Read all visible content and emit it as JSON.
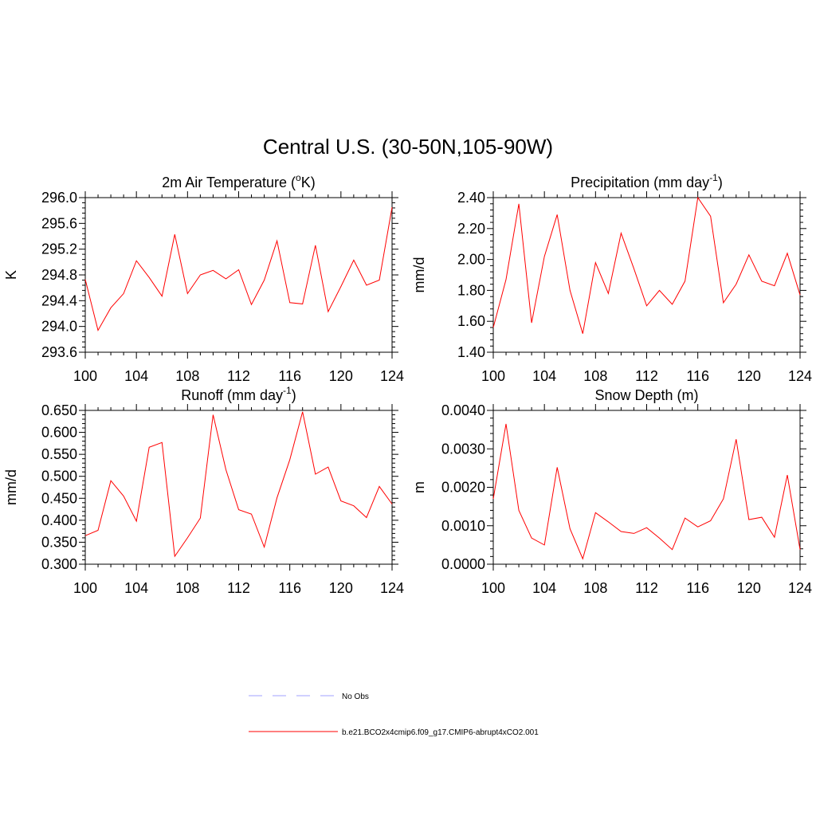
{
  "figure": {
    "title": "Central U.S. (30-50N,105-90W)"
  },
  "legend": {
    "items": [
      {
        "label": "No Obs",
        "color": "#a0a0ff",
        "dashed": true
      },
      {
        "label": "b.e21.BCO2x4cmip6.f09_g17.CMIP6-abrupt4xCO2.001",
        "color": "#ff0000",
        "dashed": false
      }
    ]
  },
  "chart_data": [
    {
      "type": "line",
      "title": "2m Air Temperature (",
      "title_sup": "o",
      "title_after": "K)",
      "ylabel": "K",
      "xlim": [
        100,
        124
      ],
      "ylim": [
        293.6,
        296.0
      ],
      "xticks": [
        "100",
        "104",
        "108",
        "112",
        "116",
        "120",
        "124"
      ],
      "yticks": [
        "293.6",
        "294.0",
        "294.4",
        "294.8",
        "295.2",
        "295.6",
        "296.0"
      ],
      "x": [
        100,
        101,
        102,
        103,
        104,
        105,
        106,
        107,
        108,
        109,
        110,
        111,
        112,
        113,
        114,
        115,
        116,
        117,
        118,
        119,
        120,
        121,
        122,
        123,
        124
      ],
      "series": [
        {
          "color": "#ff0000",
          "values": [
            294.73,
            293.94,
            294.29,
            294.51,
            295.02,
            294.76,
            294.47,
            295.43,
            294.51,
            294.8,
            294.87,
            294.74,
            294.88,
            294.34,
            294.72,
            295.33,
            294.37,
            294.35,
            295.26,
            294.23,
            294.62,
            295.03,
            294.64,
            294.72,
            295.85
          ]
        }
      ]
    },
    {
      "type": "line",
      "title": "Precipitation (mm day",
      "title_sup": "-1",
      "title_after": ")",
      "ylabel": "mm/d",
      "xlim": [
        100,
        124
      ],
      "ylim": [
        1.4,
        2.4
      ],
      "xticks": [
        "100",
        "104",
        "108",
        "112",
        "116",
        "120",
        "124"
      ],
      "yticks": [
        "1.40",
        "1.60",
        "1.80",
        "2.00",
        "2.20",
        "2.40"
      ],
      "x": [
        100,
        101,
        102,
        103,
        104,
        105,
        106,
        107,
        108,
        109,
        110,
        111,
        112,
        113,
        114,
        115,
        116,
        117,
        118,
        119,
        120,
        121,
        122,
        123,
        124
      ],
      "series": [
        {
          "color": "#ff0000",
          "values": [
            1.56,
            1.87,
            2.36,
            1.59,
            2.02,
            2.29,
            1.8,
            1.52,
            1.98,
            1.78,
            2.17,
            1.94,
            1.7,
            1.8,
            1.71,
            1.86,
            2.4,
            2.28,
            1.72,
            1.84,
            2.03,
            1.86,
            1.83,
            2.04,
            1.77
          ]
        }
      ]
    },
    {
      "type": "line",
      "title": "Runoff (mm day",
      "title_sup": "-1",
      "title_after": ")",
      "ylabel": "mm/d",
      "xlim": [
        100,
        124
      ],
      "ylim": [
        0.3,
        0.65
      ],
      "xticks": [
        "100",
        "104",
        "108",
        "112",
        "116",
        "120",
        "124"
      ],
      "yticks": [
        "0.300",
        "0.350",
        "0.400",
        "0.450",
        "0.500",
        "0.550",
        "0.600",
        "0.650"
      ],
      "x": [
        100,
        101,
        102,
        103,
        104,
        105,
        106,
        107,
        108,
        109,
        110,
        111,
        112,
        113,
        114,
        115,
        116,
        117,
        118,
        119,
        120,
        121,
        122,
        123,
        124
      ],
      "series": [
        {
          "color": "#ff0000",
          "values": [
            0.365,
            0.377,
            0.49,
            0.455,
            0.398,
            0.566,
            0.577,
            0.318,
            0.36,
            0.405,
            0.64,
            0.515,
            0.424,
            0.414,
            0.339,
            0.451,
            0.538,
            0.647,
            0.505,
            0.521,
            0.444,
            0.433,
            0.406,
            0.477,
            0.437
          ]
        }
      ]
    },
    {
      "type": "line",
      "title": "Snow Depth (m)",
      "title_sup": "",
      "title_after": "",
      "ylabel": "m",
      "xlim": [
        100,
        124
      ],
      "ylim": [
        0.0,
        0.004
      ],
      "xticks": [
        "100",
        "104",
        "108",
        "112",
        "116",
        "120",
        "124"
      ],
      "yticks": [
        "0.0000",
        "0.0010",
        "0.0020",
        "0.0030",
        "0.0040"
      ],
      "x": [
        100,
        101,
        102,
        103,
        104,
        105,
        106,
        107,
        108,
        109,
        110,
        111,
        112,
        113,
        114,
        115,
        116,
        117,
        118,
        119,
        120,
        121,
        122,
        123,
        124
      ],
      "series": [
        {
          "color": "#ff0000",
          "values": [
            0.0017,
            0.00365,
            0.0014,
            0.00068,
            0.0005,
            0.00252,
            0.00092,
            0.00014,
            0.00134,
            0.0011,
            0.00085,
            0.0008,
            0.00095,
            0.00068,
            0.00038,
            0.0012,
            0.00097,
            0.00113,
            0.0017,
            0.00325,
            0.00116,
            0.00122,
            0.0007,
            0.00232,
            0.00038
          ]
        }
      ]
    }
  ]
}
